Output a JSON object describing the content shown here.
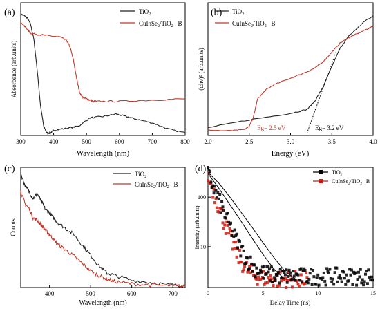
{
  "colors": {
    "tio2": "#222222",
    "cis": "#c0392b",
    "cis_marker": "#cc1a10",
    "tio2_marker": "#000000",
    "fit": "#000000"
  },
  "chart_data": [
    {
      "id": "a",
      "panel_label": "(a)",
      "type": "line",
      "xlabel": "Wavelength (nm)",
      "ylabel": "Absorbance (arb.units)",
      "xlim": [
        300,
        800
      ],
      "xticks": [
        300,
        400,
        500,
        600,
        700,
        800
      ],
      "yticks": [],
      "legend": {
        "position": "top-right",
        "entries": [
          "TiO2",
          "CuInSe2/TiO2-B"
        ]
      },
      "series": [
        {
          "name": "TiO2",
          "x": [
            300,
            310,
            320,
            330,
            340,
            350,
            360,
            370,
            380,
            390,
            400,
            420,
            450,
            480,
            510,
            550,
            590,
            620,
            650,
            700,
            750,
            800
          ],
          "y": [
            0.96,
            0.95,
            0.93,
            0.88,
            0.76,
            0.52,
            0.24,
            0.07,
            0.02,
            0.02,
            0.04,
            0.05,
            0.06,
            0.08,
            0.14,
            0.15,
            0.17,
            0.15,
            0.13,
            0.1,
            0.05,
            0.02
          ]
        },
        {
          "name": "CuInSe2/TiO2-B",
          "x": [
            300,
            310,
            320,
            330,
            350,
            380,
            420,
            440,
            450,
            460,
            470,
            480,
            490,
            500,
            510,
            520,
            540,
            600,
            700,
            800
          ],
          "y": [
            0.9,
            0.87,
            0.84,
            0.81,
            0.8,
            0.79,
            0.78,
            0.75,
            0.7,
            0.6,
            0.45,
            0.33,
            0.3,
            0.29,
            0.28,
            0.27,
            0.27,
            0.27,
            0.28,
            0.29
          ]
        }
      ]
    },
    {
      "id": "b",
      "panel_label": "(b)",
      "type": "line",
      "xlabel": "Energy (eV)",
      "ylabel": "(αhν)² (arb.units)",
      "xlim": [
        2.0,
        4.0
      ],
      "xticks": [
        "2.0",
        "2.5",
        "3.0",
        "3.5",
        "4.0"
      ],
      "yticks": [],
      "legend": {
        "position": "top-left",
        "entries": [
          "TiO2",
          "CuInSe2/TiO2-B"
        ]
      },
      "annotations": [
        {
          "text": "Eg= 2.5 eV",
          "color": "red"
        },
        {
          "text": "Eg= 3.2 eV",
          "color": "black"
        }
      ],
      "fits": [
        {
          "x": [
            3.2,
            3.55
          ],
          "y": [
            0.0,
            0.62
          ]
        }
      ],
      "series": [
        {
          "name": "TiO2",
          "x": [
            2.0,
            2.5,
            3.0,
            3.2,
            3.3,
            3.4,
            3.5,
            3.6,
            3.7,
            3.8,
            3.9,
            4.0
          ],
          "y": [
            0.04,
            0.1,
            0.15,
            0.18,
            0.25,
            0.36,
            0.51,
            0.65,
            0.74,
            0.8,
            0.86,
            0.9
          ]
        },
        {
          "name": "CuInSe2/TiO2-B",
          "x": [
            2.0,
            2.3,
            2.45,
            2.5,
            2.55,
            2.6,
            2.7,
            2.8,
            3.0,
            3.2,
            3.3,
            3.4,
            3.5,
            3.6,
            3.7,
            3.8,
            3.9,
            4.0
          ],
          "y": [
            0.02,
            0.02,
            0.03,
            0.05,
            0.12,
            0.26,
            0.33,
            0.37,
            0.42,
            0.47,
            0.5,
            0.55,
            0.62,
            0.69,
            0.73,
            0.76,
            0.79,
            0.82
          ]
        }
      ]
    },
    {
      "id": "c",
      "panel_label": "(c)",
      "type": "line",
      "xlabel": "Wavelength (nm)",
      "ylabel": "Counts",
      "xlim": [
        330,
        730
      ],
      "xticks": [
        400,
        500,
        600,
        700
      ],
      "yticks": [],
      "legend": {
        "position": "top-right",
        "entries": [
          "TiO2",
          "CuInSe2/TiO2-B"
        ]
      },
      "series": [
        {
          "name": "TiO2",
          "x": [
            330,
            340,
            350,
            360,
            370,
            380,
            390,
            400,
            410,
            420,
            440,
            460,
            480,
            500,
            520,
            540,
            560,
            600,
            650,
            700,
            730
          ],
          "y": [
            0.95,
            0.85,
            0.8,
            0.74,
            0.78,
            0.72,
            0.65,
            0.62,
            0.58,
            0.54,
            0.49,
            0.44,
            0.35,
            0.27,
            0.18,
            0.12,
            0.1,
            0.06,
            0.04,
            0.02,
            0.02
          ]
        },
        {
          "name": "CuInSe2/TiO2-B",
          "x": [
            330,
            340,
            350,
            360,
            370,
            380,
            390,
            400,
            410,
            420,
            440,
            460,
            480,
            500,
            520,
            540,
            560,
            600,
            650,
            700,
            730
          ],
          "y": [
            0.8,
            0.7,
            0.66,
            0.58,
            0.56,
            0.52,
            0.48,
            0.44,
            0.4,
            0.36,
            0.31,
            0.26,
            0.2,
            0.14,
            0.1,
            0.07,
            0.05,
            0.03,
            0.02,
            0.015,
            0.01
          ]
        }
      ]
    },
    {
      "id": "d",
      "panel_label": "(d)",
      "type": "scatter",
      "xlabel": "Delay Time (ns)",
      "ylabel": "Intensity (arb.units)",
      "xlim": [
        0,
        15
      ],
      "ylim": [
        1.5,
        400
      ],
      "yscale": "log",
      "xticks": [
        0,
        5,
        10,
        15
      ],
      "yticks": [
        10,
        100
      ],
      "legend": {
        "position": "top-right",
        "entries": [
          "TiO2",
          "CuInSe2/TiO2-B"
        ]
      },
      "fits": [
        {
          "x": [
            0,
            1,
            2,
            3,
            4,
            5,
            6,
            7,
            8
          ],
          "y": [
            320,
            190,
            100,
            50,
            25,
            12,
            6,
            3.2,
            2.2
          ]
        },
        {
          "x": [
            0,
            1,
            2,
            3,
            4,
            5,
            6,
            7
          ],
          "y": [
            300,
            150,
            70,
            33,
            15,
            7,
            3.5,
            2.2
          ]
        }
      ],
      "series": [
        {
          "name": "TiO2",
          "decay_tau": 0.78,
          "y0": 300,
          "floor": 2.5,
          "x_max": 15
        },
        {
          "name": "CuInSe2/TiO2-B",
          "decay_tau": 0.66,
          "y0": 280,
          "floor": 2.2,
          "x_max": 9
        }
      ]
    }
  ]
}
